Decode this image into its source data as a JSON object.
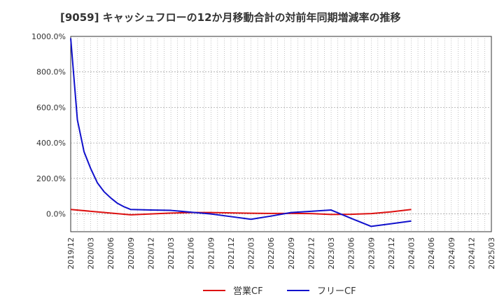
{
  "chart_data": {
    "type": "line",
    "title": "[9059]  キャッシュフローの12か月移動合計の対前年同期増減率の推移",
    "xlabel": "",
    "ylabel": "",
    "ylim": [
      -100,
      1000
    ],
    "y_ticks": [
      1000,
      800,
      600,
      400,
      200,
      0
    ],
    "y_tick_labels": [
      "1000.0%",
      "800.0%",
      "600.0%",
      "400.0%",
      "200.0%",
      "0.0%"
    ],
    "x_range": [
      "2019-12",
      "2025-03"
    ],
    "x_tick_labels": [
      "2019/12",
      "2020/03",
      "2020/06",
      "2020/09",
      "2020/12",
      "2021/03",
      "2021/06",
      "2021/09",
      "2021/12",
      "2022/03",
      "2022/06",
      "2022/09",
      "2022/12",
      "2023/03",
      "2023/06",
      "2023/09",
      "2023/12",
      "2024/03",
      "2024/06",
      "2024/09",
      "2024/12",
      "2025/03"
    ],
    "grid": true,
    "legend_position": "bottom-center",
    "series": [
      {
        "name": "営業CF",
        "color": "#dd1111",
        "points": [
          [
            "2019-12",
            25
          ],
          [
            "2020-03",
            15
          ],
          [
            "2020-06",
            5
          ],
          [
            "2020-09",
            -5
          ],
          [
            "2020-12",
            0
          ],
          [
            "2021-03",
            5
          ],
          [
            "2021-06",
            8
          ],
          [
            "2021-09",
            8
          ],
          [
            "2021-12",
            6
          ],
          [
            "2022-03",
            4
          ],
          [
            "2022-06",
            3
          ],
          [
            "2022-09",
            3
          ],
          [
            "2022-12",
            2
          ],
          [
            "2023-03",
            -3
          ],
          [
            "2023-06",
            -2
          ],
          [
            "2023-09",
            2
          ],
          [
            "2023-12",
            12
          ],
          [
            "2024-03",
            25
          ]
        ]
      },
      {
        "name": "フリーCF",
        "color": "#1111cc",
        "points": [
          [
            "2019-12",
            990
          ],
          [
            "2020-01",
            530
          ],
          [
            "2020-02",
            350
          ],
          [
            "2020-03",
            255
          ],
          [
            "2020-04",
            175
          ],
          [
            "2020-05",
            125
          ],
          [
            "2020-06",
            90
          ],
          [
            "2020-07",
            60
          ],
          [
            "2020-08",
            40
          ],
          [
            "2020-09",
            25
          ],
          [
            "2020-12",
            22
          ],
          [
            "2021-03",
            20
          ],
          [
            "2021-06",
            10
          ],
          [
            "2021-09",
            0
          ],
          [
            "2021-12",
            -15
          ],
          [
            "2022-03",
            -30
          ],
          [
            "2022-06",
            -12
          ],
          [
            "2022-09",
            8
          ],
          [
            "2022-12",
            15
          ],
          [
            "2023-03",
            22
          ],
          [
            "2023-06",
            -25
          ],
          [
            "2023-09",
            -70
          ],
          [
            "2023-12",
            -55
          ],
          [
            "2024-03",
            -40
          ]
        ]
      }
    ]
  }
}
